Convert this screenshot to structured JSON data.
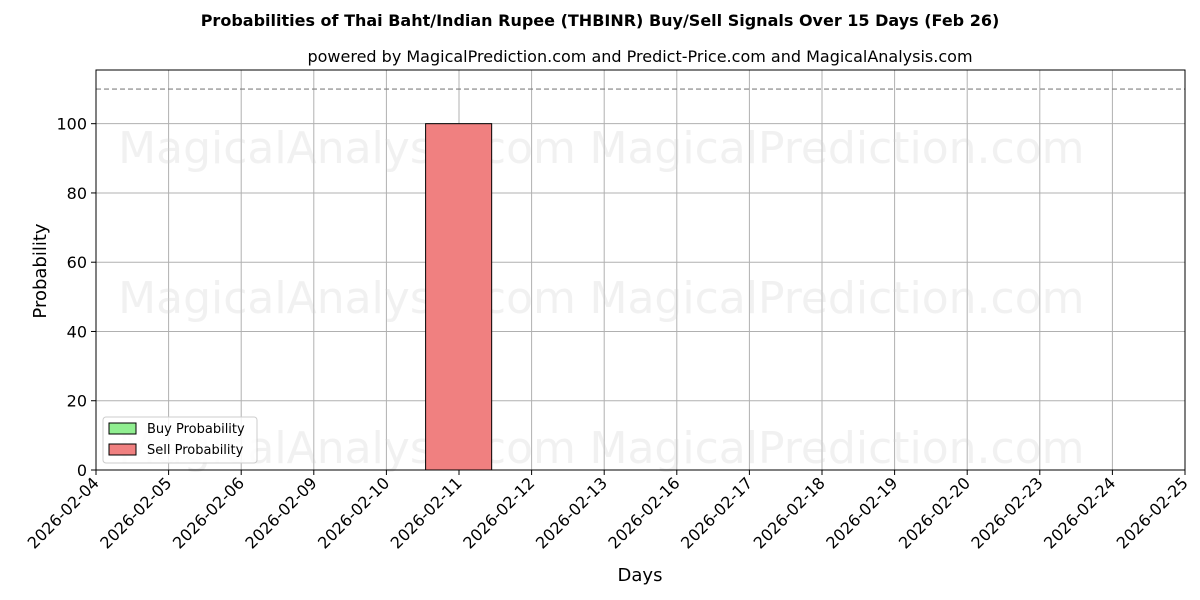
{
  "chart_data": {
    "type": "bar",
    "title": "Probabilities of Thai Baht/Indian Rupee (THBINR) Buy/Sell Signals Over 15 Days (Feb 26)",
    "subtitle": "powered by MagicalPrediction.com and Predict-Price.com and MagicalAnalysis.com",
    "xlabel": "Days",
    "ylabel": "Probability",
    "ylim": [
      0,
      115.5
    ],
    "yticks": [
      0,
      20,
      40,
      60,
      80,
      100
    ],
    "reference_line": 110,
    "grid": true,
    "legend_position": "lower-left",
    "categories": [
      "2026-02-04",
      "2026-02-05",
      "2026-02-06",
      "2026-02-09",
      "2026-02-10",
      "2026-02-11",
      "2026-02-12",
      "2026-02-13",
      "2026-02-16",
      "2026-02-17",
      "2026-02-18",
      "2026-02-19",
      "2026-02-20",
      "2026-02-23",
      "2026-02-24",
      "2026-02-25"
    ],
    "series": [
      {
        "name": "Buy Probability",
        "color": "#90ee90",
        "values": [
          0,
          0,
          0,
          0,
          0,
          0,
          0,
          0,
          0,
          0,
          0,
          0,
          0,
          0,
          0,
          0
        ]
      },
      {
        "name": "Sell Probability",
        "color": "#f08080",
        "values": [
          0,
          0,
          0,
          0,
          100,
          0,
          0,
          0,
          0,
          0,
          0,
          0,
          0,
          0,
          0,
          0
        ]
      }
    ]
  },
  "watermarks": [
    "MagicalAnalysis.com",
    "MagicalPrediction.com"
  ]
}
